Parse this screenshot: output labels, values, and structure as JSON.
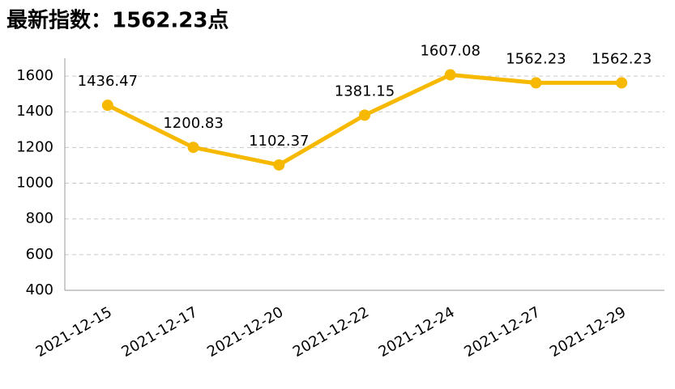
{
  "chart_data": {
    "type": "line",
    "title": "最新指数：1562.23点",
    "categories": [
      "2021-12-15",
      "2021-12-17",
      "2021-12-20",
      "2021-12-22",
      "2021-12-24",
      "2021-12-27",
      "2021-12-29"
    ],
    "values": [
      1436.47,
      1200.83,
      1102.37,
      1381.15,
      1607.08,
      1562.23,
      1562.23
    ],
    "color": "#f7b900",
    "ylim": [
      400,
      1700
    ],
    "yticks": [
      400,
      600,
      800,
      1000,
      1200,
      1400,
      1600
    ],
    "grid": true
  }
}
